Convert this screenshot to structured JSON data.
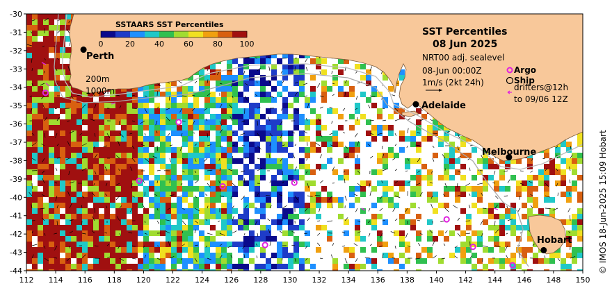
{
  "title": {
    "line1": "SST Percentiles",
    "line2": "08 Jun 2025",
    "source": "NRT00 adj. sealevel",
    "time": "08-Jun 00:00Z",
    "current_scale": "1m/s (2kt 24h)"
  },
  "legend": {
    "colorbar_title": "SSTAARS SST Percentiles",
    "ticks": [
      "0",
      "20",
      "40",
      "60",
      "80",
      "100"
    ],
    "colors": [
      "#0a0a8c",
      "#1e3cc8",
      "#1e90ff",
      "#20c8c8",
      "#30c050",
      "#a0dc30",
      "#f0e020",
      "#f0a010",
      "#d86010",
      "#a01010"
    ],
    "argo_label": "Argo",
    "ship_label": "Ship",
    "drifters_label_1": "drifters@12h",
    "drifters_label_2": "to 09/06 12Z",
    "isobath_200": "200m",
    "isobath_1000": "1000m",
    "argo_color": "#e020e0"
  },
  "cities": [
    {
      "name": "Perth",
      "lon": 115.9,
      "lat": -31.95
    },
    {
      "name": "Adelaide",
      "lon": 138.6,
      "lat": -34.93
    },
    {
      "name": "Melbourne",
      "lon": 144.96,
      "lat": -37.81
    },
    {
      "name": "Hobart",
      "lon": 147.33,
      "lat": -42.88
    }
  ],
  "axes": {
    "x_ticks": [
      "112",
      "114",
      "116",
      "118",
      "120",
      "122",
      "124",
      "126",
      "128",
      "130",
      "132",
      "134",
      "136",
      "138",
      "140",
      "142",
      "144",
      "146",
      "148",
      "150"
    ],
    "y_ticks": [
      "-30",
      "-31",
      "-32",
      "-33",
      "-34",
      "-35",
      "-36",
      "-37",
      "-38",
      "-39",
      "-40",
      "-41",
      "-42",
      "-43",
      "-44"
    ],
    "lon_range": [
      112,
      150
    ],
    "lat_range": [
      -44,
      -30
    ]
  },
  "argo_floats": [
    {
      "lon": 113.3,
      "lat": -34.3
    },
    {
      "lon": 119.7,
      "lat": -39.1
    },
    {
      "lon": 122.4,
      "lat": -35.9
    },
    {
      "lon": 125.4,
      "lat": -39.4
    },
    {
      "lon": 130.3,
      "lat": -39.2
    },
    {
      "lon": 128.3,
      "lat": -42.6
    },
    {
      "lon": 140.7,
      "lat": -41.2
    },
    {
      "lon": 142.5,
      "lat": -42.7
    },
    {
      "lon": 145.2,
      "lat": -43.7
    }
  ],
  "credit": "© IMOS 18-Jun-2025 15:09 Hobart",
  "colors": {
    "land": "#f8c89a",
    "no_data": "#ffffff"
  }
}
